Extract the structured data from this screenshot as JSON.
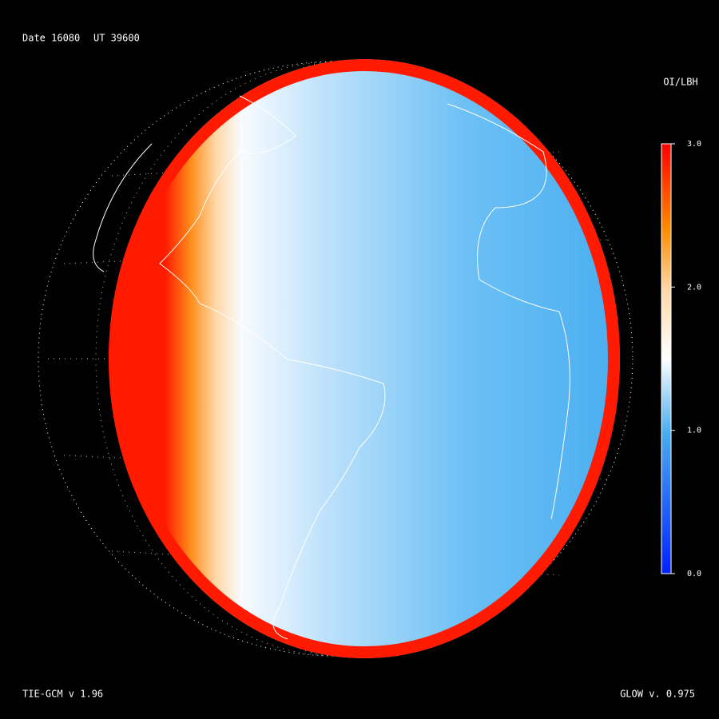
{
  "header": {
    "date": "Date 16080",
    "ut": "UT 39600"
  },
  "colorbar": {
    "title": "OI/LBH",
    "lim": [
      0,
      3
    ],
    "ticks": [
      {
        "value": 0,
        "label": "0.0"
      },
      {
        "value": 1,
        "label": "1.0"
      },
      {
        "value": 2,
        "label": "2.0"
      },
      {
        "value": 3,
        "label": "3.0"
      }
    ]
  },
  "footer": {
    "left": "TIE-GCM v 1.96",
    "right": "GLOW v. 0.975"
  }
}
